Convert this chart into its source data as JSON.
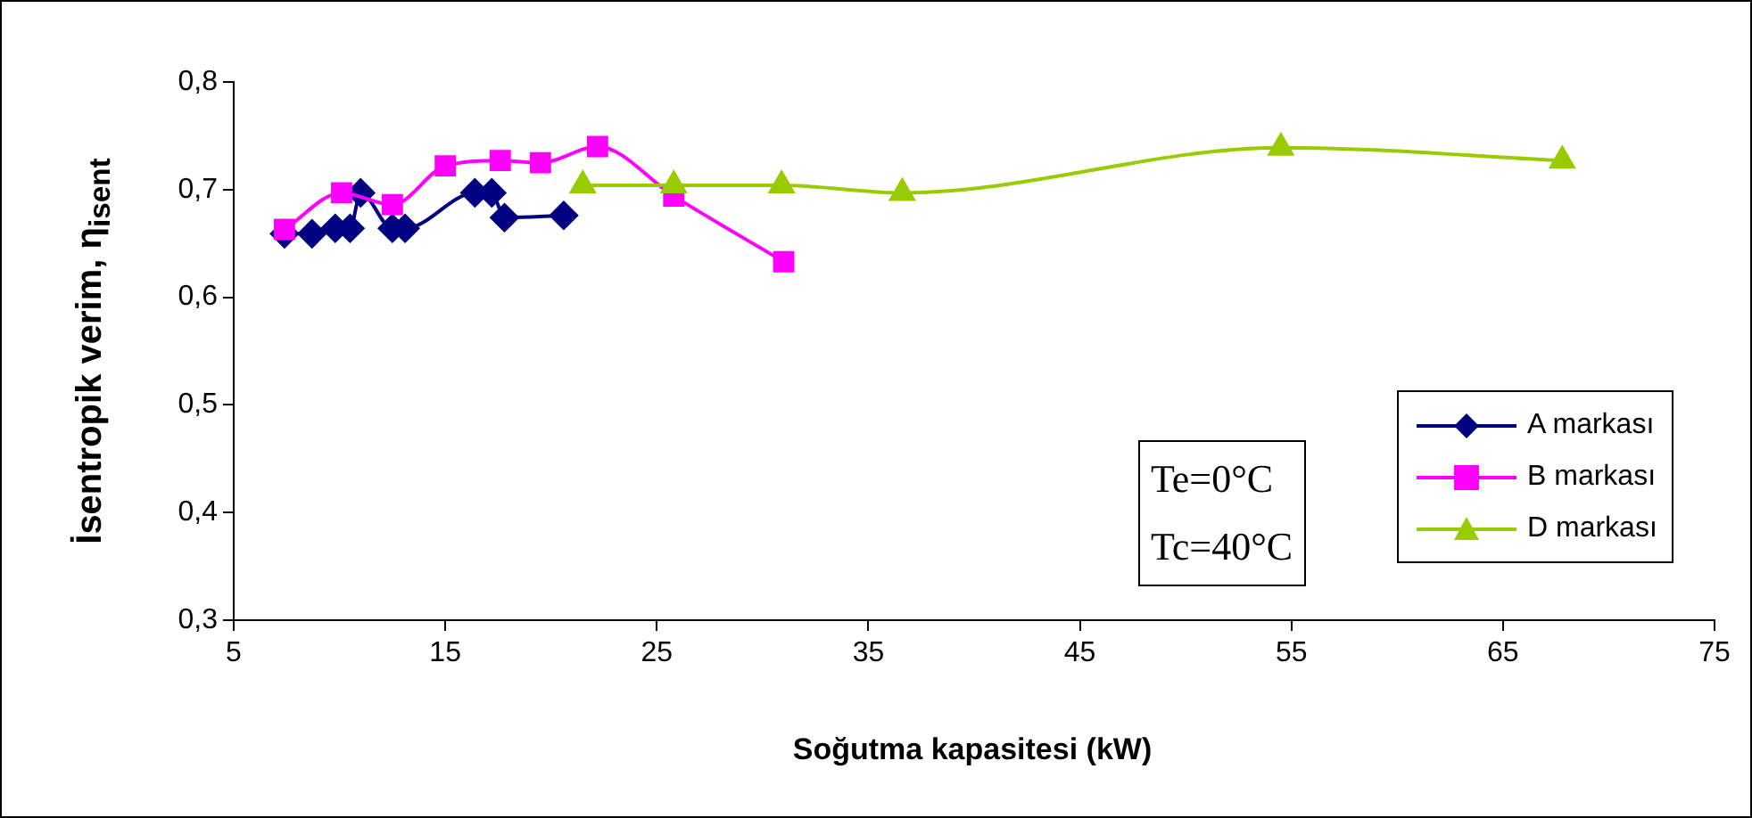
{
  "chart_data": {
    "type": "line",
    "xlabel": "Soğutma kapasitesi (kW)",
    "ylabel": "İsentropik verim, η$_{isent}$",
    "xlim": [
      5,
      75
    ],
    "xticks": [
      5,
      15,
      25,
      35,
      45,
      55,
      65,
      75
    ],
    "ylim": [
      0.3,
      0.8
    ],
    "yticks": [
      {
        "value": 0.3,
        "label": "0,3"
      },
      {
        "value": 0.4,
        "label": "0,4"
      },
      {
        "value": 0.5,
        "label": "0,5"
      },
      {
        "value": 0.6,
        "label": "0,6"
      },
      {
        "value": 0.7,
        "label": "0,7"
      },
      {
        "value": 0.8,
        "label": "0,8"
      }
    ],
    "grid": false,
    "legend": "right",
    "line_style": "solid",
    "annotations": [
      "Te=0°C",
      "Tc=40°C"
    ],
    "series": [
      {
        "name": "A markası",
        "color": "#000080",
        "marker": "diamond",
        "x": [
          7.4,
          8.7,
          9.8,
          10.5,
          11.0,
          12.5,
          13.1,
          16.4,
          17.2,
          17.8,
          20.6
        ],
        "values": [
          0.659,
          0.659,
          0.664,
          0.664,
          0.697,
          0.664,
          0.664,
          0.697,
          0.697,
          0.674,
          0.676
        ]
      },
      {
        "name": "B markası",
        "color": "#ff00ff",
        "marker": "square",
        "x": [
          7.4,
          10.1,
          12.5,
          15.0,
          17.6,
          19.5,
          22.2,
          25.8,
          31.0
        ],
        "values": [
          0.663,
          0.697,
          0.686,
          0.722,
          0.727,
          0.725,
          0.74,
          0.694,
          0.633
        ]
      },
      {
        "name": "D markası",
        "color": "#99cc00",
        "marker": "triangle",
        "x": [
          21.5,
          25.8,
          30.9,
          36.6,
          54.5,
          67.8
        ],
        "values": [
          0.704,
          0.704,
          0.704,
          0.697,
          0.739,
          0.727
        ]
      }
    ]
  }
}
